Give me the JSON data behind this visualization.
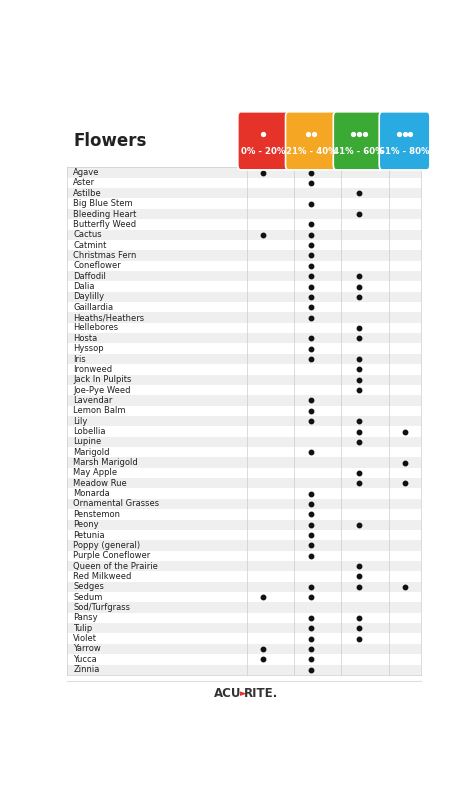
{
  "title": "Flowers",
  "columns": [
    "0% - 20%",
    "21% - 40%",
    "41% - 60%",
    "61% - 80%"
  ],
  "col_colors": [
    "#e63329",
    "#f5a623",
    "#3aaa35",
    "#29abe2"
  ],
  "col_drops": [
    1,
    2,
    3,
    3
  ],
  "flowers": [
    "Agave",
    "Aster",
    "Astilbe",
    "Big Blue Stem",
    "Bleeding Heart",
    "Butterfly Weed",
    "Cactus",
    "Catmint",
    "Christmas Fern",
    "Coneflower",
    "Daffodil",
    "Dalia",
    "Daylilly",
    "Gaillardia",
    "Heaths/Heathers",
    "Hellebores",
    "Hosta",
    "Hyssop",
    "Iris",
    "Ironweed",
    "Jack In Pulpits",
    "Joe-Pye Weed",
    "Lavendar",
    "Lemon Balm",
    "Lily",
    "Lobellia",
    "Lupine",
    "Marigold",
    "Marsh Marigold",
    "May Apple",
    "Meadow Rue",
    "Monarda",
    "Ornamental Grasses",
    "Penstemon",
    "Peony",
    "Petunia",
    "Poppy (general)",
    "Purple Coneflower",
    "Queen of the Prairie",
    "Red Milkweed",
    "Sedges",
    "Sedum",
    "Sod/Turfgrass",
    "Pansy",
    "Tulip",
    "Violet",
    "Yarrow",
    "Yucca",
    "Zinnia"
  ],
  "dots": {
    "Agave": [
      1,
      1,
      0,
      0
    ],
    "Aster": [
      0,
      1,
      0,
      0
    ],
    "Astilbe": [
      0,
      0,
      1,
      0
    ],
    "Big Blue Stem": [
      0,
      1,
      0,
      0
    ],
    "Bleeding Heart": [
      0,
      0,
      1,
      0
    ],
    "Butterfly Weed": [
      0,
      1,
      0,
      0
    ],
    "Cactus": [
      1,
      1,
      0,
      0
    ],
    "Catmint": [
      0,
      1,
      0,
      0
    ],
    "Christmas Fern": [
      0,
      1,
      0,
      0
    ],
    "Coneflower": [
      0,
      1,
      0,
      0
    ],
    "Daffodil": [
      0,
      1,
      1,
      0
    ],
    "Dalia": [
      0,
      1,
      1,
      0
    ],
    "Daylilly": [
      0,
      1,
      1,
      0
    ],
    "Gaillardia": [
      0,
      1,
      0,
      0
    ],
    "Heaths/Heathers": [
      0,
      1,
      0,
      0
    ],
    "Hellebores": [
      0,
      0,
      1,
      0
    ],
    "Hosta": [
      0,
      1,
      1,
      0
    ],
    "Hyssop": [
      0,
      1,
      0,
      0
    ],
    "Iris": [
      0,
      1,
      1,
      0
    ],
    "Ironweed": [
      0,
      0,
      1,
      0
    ],
    "Jack In Pulpits": [
      0,
      0,
      1,
      0
    ],
    "Joe-Pye Weed": [
      0,
      0,
      1,
      0
    ],
    "Lavendar": [
      0,
      1,
      0,
      0
    ],
    "Lemon Balm": [
      0,
      1,
      0,
      0
    ],
    "Lily": [
      0,
      1,
      1,
      0
    ],
    "Lobellia": [
      0,
      0,
      1,
      1
    ],
    "Lupine": [
      0,
      0,
      1,
      0
    ],
    "Marigold": [
      0,
      1,
      0,
      0
    ],
    "Marsh Marigold": [
      0,
      0,
      0,
      1
    ],
    "May Apple": [
      0,
      0,
      1,
      0
    ],
    "Meadow Rue": [
      0,
      0,
      1,
      1
    ],
    "Monarda": [
      0,
      1,
      0,
      0
    ],
    "Ornamental Grasses": [
      0,
      1,
      0,
      0
    ],
    "Penstemon": [
      0,
      1,
      0,
      0
    ],
    "Peony": [
      0,
      1,
      1,
      0
    ],
    "Petunia": [
      0,
      1,
      0,
      0
    ],
    "Poppy (general)": [
      0,
      1,
      0,
      0
    ],
    "Purple Coneflower": [
      0,
      1,
      0,
      0
    ],
    "Queen of the Prairie": [
      0,
      0,
      1,
      0
    ],
    "Red Milkweed": [
      0,
      0,
      1,
      0
    ],
    "Sedges": [
      0,
      1,
      1,
      1
    ],
    "Sedum": [
      1,
      1,
      0,
      0
    ],
    "Sod/Turfgrass": [
      0,
      0,
      0,
      0
    ],
    "Pansy": [
      0,
      1,
      1,
      0
    ],
    "Tulip": [
      0,
      1,
      1,
      0
    ],
    "Violet": [
      0,
      1,
      1,
      0
    ],
    "Yarrow": [
      1,
      1,
      0,
      0
    ],
    "Yucca": [
      1,
      1,
      0,
      0
    ],
    "Zinnia": [
      0,
      1,
      0,
      0
    ]
  },
  "background_color": "#ffffff",
  "row_alt_color": "#efefef",
  "row_base_color": "#ffffff",
  "footer_arrow_color": "#e63329",
  "footer_text_color": "#333333",
  "dot_color": "#111111"
}
